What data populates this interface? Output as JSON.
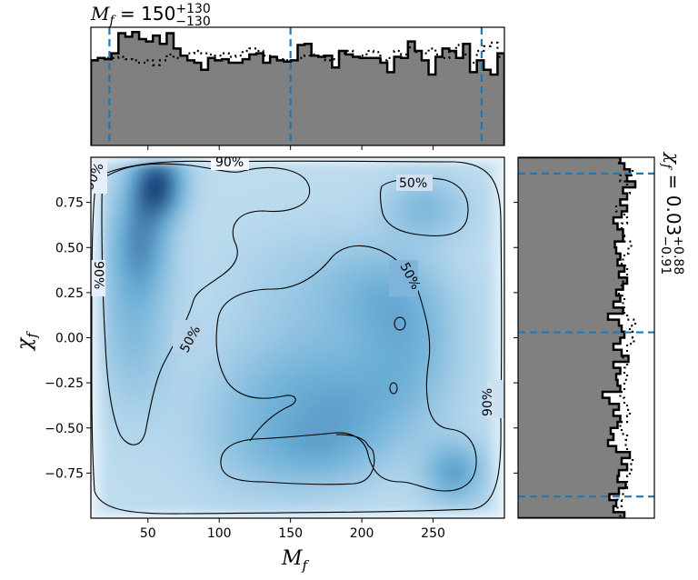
{
  "chart_data": {
    "type": "corner",
    "top_title": {
      "symbol": "M",
      "subscript": "f",
      "eq": " = ",
      "value": "150",
      "upper": "+130",
      "lower": "−130"
    },
    "right_title": {
      "symbol": "χ",
      "subscript": "f",
      "eq": " = ",
      "value": "0.03",
      "upper": "+0.88",
      "lower": "−0.91"
    },
    "xlabel": {
      "symbol": "M",
      "subscript": "f"
    },
    "ylabel": {
      "symbol": "χ",
      "subscript": "f"
    },
    "xlim": [
      10,
      300
    ],
    "ylim": [
      -1.0,
      1.0
    ],
    "xticks": [
      "50",
      "100",
      "150",
      "200",
      "250"
    ],
    "xtick_values": [
      50,
      100,
      150,
      200,
      250
    ],
    "yticks": [
      "0.75",
      "0.50",
      "0.25",
      "0.00",
      "−0.25",
      "−0.50",
      "−0.75"
    ],
    "ytick_values": [
      0.75,
      0.5,
      0.25,
      0.0,
      -0.25,
      -0.5,
      -0.75
    ],
    "mass_quantiles": [
      23,
      150,
      284
    ],
    "spin_quantiles": [
      -0.88,
      0.03,
      0.91
    ],
    "contour_labels": [
      "50%",
      "50%",
      "50%",
      "90%",
      "90%",
      "90%",
      "90%"
    ],
    "mass_histogram": {
      "bins": 60,
      "range": [
        10,
        300
      ],
      "counts": [
        0.72,
        0.74,
        0.73,
        0.78,
        0.95,
        0.92,
        0.96,
        0.9,
        0.88,
        0.93,
        0.86,
        0.95,
        0.82,
        0.76,
        0.72,
        0.7,
        0.64,
        0.74,
        0.72,
        0.73,
        0.7,
        0.7,
        0.73,
        0.77,
        0.78,
        0.7,
        0.75,
        0.72,
        0.71,
        0.72,
        0.85,
        0.86,
        0.76,
        0.75,
        0.76,
        0.66,
        0.8,
        0.77,
        0.75,
        0.74,
        0.74,
        0.74,
        0.7,
        0.62,
        0.75,
        0.74,
        0.88,
        0.8,
        0.72,
        0.6,
        0.75,
        0.82,
        0.8,
        0.74,
        0.86,
        0.62,
        0.72,
        0.64,
        0.6,
        0.78
      ],
      "prior": [
        0.72,
        0.74,
        0.74,
        0.74,
        0.75,
        0.73,
        0.72,
        0.7,
        0.72,
        0.68,
        0.72,
        0.77,
        0.74,
        0.76,
        0.78,
        0.8,
        0.78,
        0.77,
        0.76,
        0.78,
        0.75,
        0.76,
        0.8,
        0.82,
        0.8,
        0.76,
        0.75,
        0.73,
        0.72,
        0.72,
        0.74,
        0.76,
        0.77,
        0.76,
        0.72,
        0.73,
        0.78,
        0.8,
        0.75,
        0.76,
        0.8,
        0.79,
        0.72,
        0.74,
        0.8,
        0.77,
        0.83,
        0.79,
        0.78,
        0.82,
        0.77,
        0.74,
        0.79,
        0.85,
        0.77,
        0.7,
        0.8,
        0.84,
        0.87,
        0.75
      ]
    },
    "spin_histogram": {
      "bins": 60,
      "range": [
        -1.0,
        1.0
      ],
      "counts": [
        0.78,
        0.7,
        0.72,
        0.67,
        0.74,
        0.79,
        0.73,
        0.74,
        0.8,
        0.76,
        0.82,
        0.72,
        0.66,
        0.7,
        0.68,
        0.73,
        0.75,
        0.7,
        0.74,
        0.67,
        0.62,
        0.75,
        0.73,
        0.72,
        0.75,
        0.7,
        0.81,
        0.76,
        0.7,
        0.75,
        0.78,
        0.76,
        0.74,
        0.66,
        0.77,
        0.7,
        0.75,
        0.72,
        0.77,
        0.8,
        0.74,
        0.78,
        0.73,
        0.75,
        0.72,
        0.71,
        0.77,
        0.77,
        0.73,
        0.7,
        0.76,
        0.8,
        0.75,
        0.8,
        0.77,
        0.86,
        0.8,
        0.82,
        0.78,
        0.75
      ],
      "prior": [
        0.75,
        0.73,
        0.76,
        0.73,
        0.77,
        0.8,
        0.8,
        0.82,
        0.83,
        0.84,
        0.82,
        0.8,
        0.79,
        0.8,
        0.76,
        0.75,
        0.8,
        0.82,
        0.8,
        0.78,
        0.75,
        0.78,
        0.78,
        0.8,
        0.78,
        0.8,
        0.77,
        0.8,
        0.8,
        0.85,
        0.84,
        0.82,
        0.86,
        0.8,
        0.78,
        0.77,
        0.78,
        0.74,
        0.76,
        0.77,
        0.8,
        0.8,
        0.76,
        0.78,
        0.81,
        0.83,
        0.78,
        0.77,
        0.76,
        0.8,
        0.78,
        0.72,
        0.75,
        0.8,
        0.82,
        0.8,
        0.75,
        0.84,
        0.78,
        0.74
      ]
    },
    "density_peaks": [
      {
        "x": 57,
        "y": 0.85,
        "weight": 1.0,
        "sigma_x": 13,
        "sigma_y": 0.13
      },
      {
        "x": 45,
        "y": 0.55,
        "weight": 0.55,
        "sigma_x": 14,
        "sigma_y": 0.2
      },
      {
        "x": 40,
        "y": 0.1,
        "weight": 0.35,
        "sigma_x": 18,
        "sigma_y": 0.35
      },
      {
        "x": 265,
        "y": -0.75,
        "weight": 0.55,
        "sigma_x": 15,
        "sigma_y": 0.12
      },
      {
        "x": 245,
        "y": 0.72,
        "weight": 0.35,
        "sigma_x": 20,
        "sigma_y": 0.12
      },
      {
        "x": 215,
        "y": 0.25,
        "weight": 0.3,
        "sigma_x": 30,
        "sigma_y": 0.2
      },
      {
        "x": 160,
        "y": -0.25,
        "weight": 0.3,
        "sigma_x": 40,
        "sigma_y": 0.25
      },
      {
        "x": 200,
        "y": -0.4,
        "weight": 0.28,
        "sigma_x": 35,
        "sigma_y": 0.2
      },
      {
        "x": 170,
        "y": -0.65,
        "weight": 0.3,
        "sigma_x": 30,
        "sigma_y": 0.15
      },
      {
        "x": 235,
        "y": -0.05,
        "weight": 0.32,
        "sigma_x": 25,
        "sigma_y": 0.25
      },
      {
        "x": 120,
        "y": -0.55,
        "weight": 0.2,
        "sigma_x": 30,
        "sigma_y": 0.25
      },
      {
        "x": 160,
        "y": 0.3,
        "weight": 0.15,
        "sigma_x": 40,
        "sigma_y": 0.25
      }
    ],
    "colors": {
      "density_low": "#f7fbff",
      "density_mid": "#6baed6",
      "density_high": "#08306b",
      "histogram_fill": "#808080",
      "quantile_line": "#1f77b4",
      "contour": "#000000"
    }
  }
}
